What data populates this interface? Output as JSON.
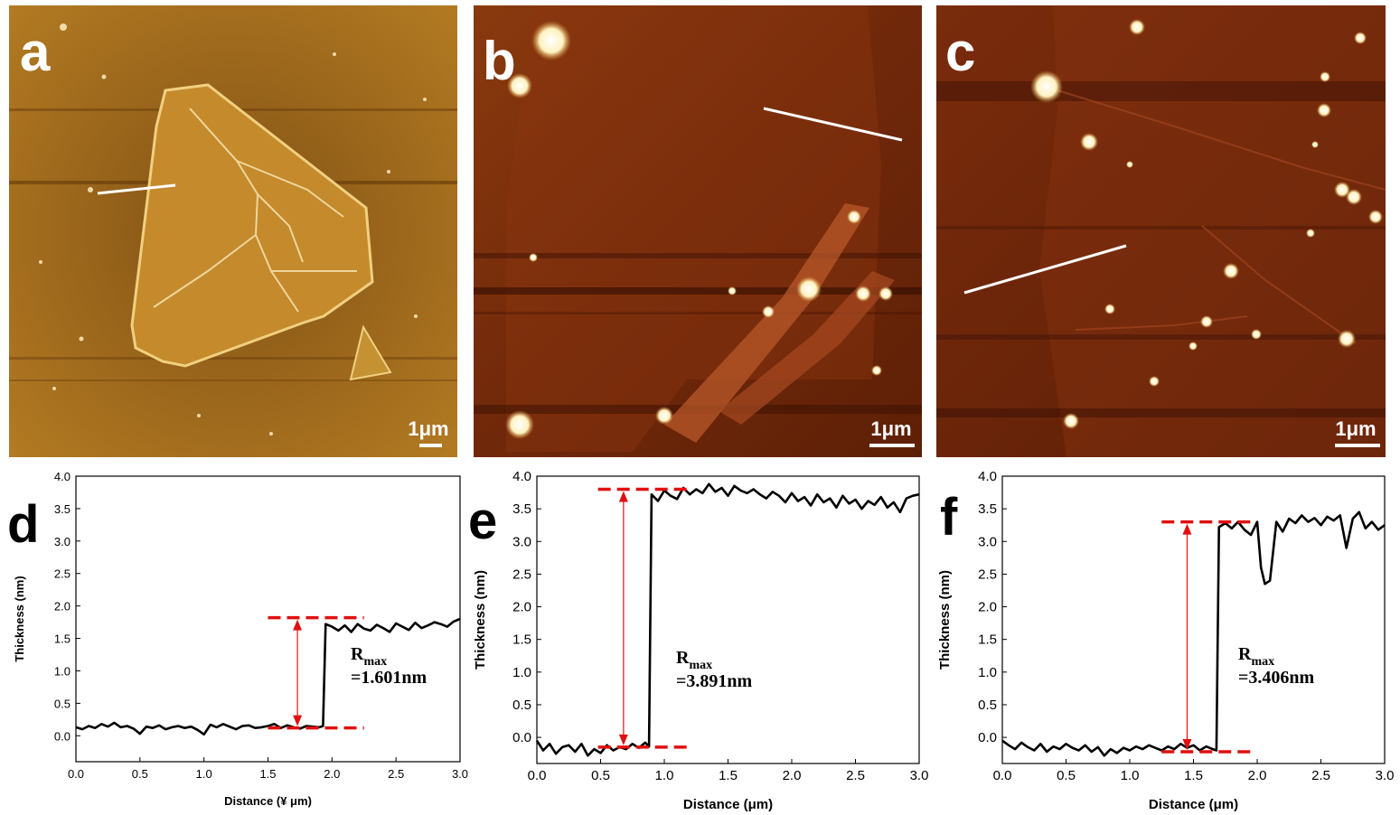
{
  "colors": {
    "afm_a_base": "#a8701a",
    "afm_bc_base": "#6e2608",
    "flake_a": "#c9902e",
    "bright_feature": "#fff6d6",
    "profile_line": "#000000",
    "dashed_marker": "#e01010",
    "arrow": "#e01010"
  },
  "images": [
    {
      "letter": "a",
      "scale_label": "1μm"
    },
    {
      "letter": "b",
      "scale_label": "1μm"
    },
    {
      "letter": "c",
      "scale_label": "1μm"
    }
  ],
  "chart_data": [
    {
      "type": "line",
      "panel": "d",
      "xlabel": "Distance (¥ μm)",
      "ylabel": "Thickness (nm)",
      "xlim": [
        0.0,
        3.0
      ],
      "ylim": [
        -0.4,
        4.0
      ],
      "xticks": [
        0.0,
        0.5,
        1.0,
        1.5,
        2.0,
        2.5,
        3.0
      ],
      "yticks": [
        0.0,
        0.5,
        1.0,
        1.5,
        2.0,
        2.5,
        3.0,
        3.5,
        4.0
      ],
      "annotation": {
        "symbol": "R",
        "subscript": "max",
        "value_text": "=1.601nm"
      },
      "markers": {
        "low": 0.12,
        "high": 1.82,
        "low_x": [
          1.5,
          2.25
        ],
        "high_x": [
          1.5,
          2.25
        ],
        "arrow_x": 1.73
      },
      "series": [
        {
          "x": [
            0.0,
            0.05,
            0.1,
            0.15,
            0.2,
            0.25,
            0.3,
            0.35,
            0.4,
            0.45,
            0.5,
            0.55,
            0.6,
            0.65,
            0.7,
            0.75,
            0.8,
            0.85,
            0.9,
            0.95,
            1.0,
            1.05,
            1.1,
            1.15,
            1.2,
            1.25,
            1.3,
            1.35,
            1.4,
            1.45,
            1.5,
            1.55,
            1.6,
            1.65,
            1.7,
            1.75,
            1.8,
            1.85,
            1.9,
            1.93,
            1.95,
            2.0,
            2.05,
            2.1,
            2.15,
            2.2,
            2.25,
            2.3,
            2.35,
            2.4,
            2.45,
            2.5,
            2.55,
            2.6,
            2.65,
            2.7,
            2.75,
            2.8,
            2.85,
            2.9,
            2.95,
            3.0
          ],
          "y": [
            0.13,
            0.1,
            0.15,
            0.12,
            0.18,
            0.14,
            0.2,
            0.13,
            0.15,
            0.11,
            0.03,
            0.14,
            0.12,
            0.16,
            0.1,
            0.13,
            0.15,
            0.12,
            0.14,
            0.09,
            0.02,
            0.17,
            0.13,
            0.18,
            0.14,
            0.1,
            0.15,
            0.16,
            0.12,
            0.13,
            0.15,
            0.18,
            0.12,
            0.16,
            0.13,
            0.11,
            0.15,
            0.14,
            0.13,
            0.15,
            1.72,
            1.68,
            1.62,
            1.7,
            1.6,
            1.72,
            1.65,
            1.62,
            1.71,
            1.66,
            1.6,
            1.73,
            1.68,
            1.63,
            1.74,
            1.66,
            1.7,
            1.75,
            1.72,
            1.68,
            1.76,
            1.8
          ]
        }
      ]
    },
    {
      "type": "line",
      "panel": "e",
      "xlabel": "Distance (μm)",
      "ylabel": "Thickness (nm)",
      "xlim": [
        0.0,
        3.0
      ],
      "ylim": [
        -0.4,
        4.0
      ],
      "xticks": [
        0.0,
        0.5,
        1.0,
        1.5,
        2.0,
        2.5,
        3.0
      ],
      "yticks": [
        0.0,
        0.5,
        1.0,
        1.5,
        2.0,
        2.5,
        3.0,
        3.5,
        4.0
      ],
      "annotation": {
        "symbol": "R",
        "subscript": "max",
        "value_text": "=3.891nm"
      },
      "markers": {
        "low": -0.15,
        "high": 3.8,
        "low_x": [
          0.48,
          1.22
        ],
        "high_x": [
          0.48,
          1.22
        ],
        "arrow_x": 0.68
      },
      "series": [
        {
          "x": [
            0.0,
            0.05,
            0.1,
            0.15,
            0.2,
            0.25,
            0.3,
            0.35,
            0.4,
            0.45,
            0.5,
            0.55,
            0.6,
            0.65,
            0.7,
            0.75,
            0.8,
            0.85,
            0.88,
            0.9,
            0.95,
            1.0,
            1.05,
            1.1,
            1.15,
            1.2,
            1.25,
            1.3,
            1.35,
            1.4,
            1.45,
            1.5,
            1.55,
            1.6,
            1.65,
            1.7,
            1.75,
            1.8,
            1.85,
            1.9,
            1.95,
            2.0,
            2.05,
            2.1,
            2.15,
            2.2,
            2.25,
            2.3,
            2.35,
            2.4,
            2.45,
            2.5,
            2.55,
            2.6,
            2.65,
            2.7,
            2.75,
            2.8,
            2.85,
            2.9,
            2.95,
            3.0
          ],
          "y": [
            -0.05,
            -0.2,
            -0.1,
            -0.25,
            -0.15,
            -0.12,
            -0.22,
            -0.1,
            -0.28,
            -0.18,
            -0.24,
            -0.12,
            -0.2,
            -0.15,
            -0.18,
            -0.1,
            -0.16,
            -0.08,
            -0.14,
            3.72,
            3.62,
            3.78,
            3.7,
            3.65,
            3.82,
            3.72,
            3.8,
            3.74,
            3.88,
            3.76,
            3.82,
            3.7,
            3.85,
            3.78,
            3.74,
            3.8,
            3.72,
            3.66,
            3.76,
            3.7,
            3.6,
            3.74,
            3.62,
            3.68,
            3.55,
            3.72,
            3.6,
            3.66,
            3.52,
            3.7,
            3.58,
            3.64,
            3.5,
            3.62,
            3.56,
            3.68,
            3.52,
            3.6,
            3.45,
            3.66,
            3.7,
            3.72
          ]
        }
      ]
    },
    {
      "type": "line",
      "panel": "f",
      "xlabel": "Distance (μm)",
      "ylabel": "Thickness (nm)",
      "xlim": [
        0.0,
        3.0
      ],
      "ylim": [
        -0.4,
        4.0
      ],
      "xticks": [
        0.0,
        0.5,
        1.0,
        1.5,
        2.0,
        2.5,
        3.0
      ],
      "yticks": [
        0.0,
        0.5,
        1.0,
        1.5,
        2.0,
        2.5,
        3.0,
        3.5,
        4.0
      ],
      "annotation": {
        "symbol": "R",
        "subscript": "max",
        "value_text": "=3.406nm"
      },
      "markers": {
        "low": -0.22,
        "high": 3.3,
        "low_x": [
          1.25,
          1.97
        ],
        "high_x": [
          1.25,
          1.97
        ],
        "arrow_x": 1.45
      },
      "series": [
        {
          "x": [
            0.0,
            0.05,
            0.1,
            0.15,
            0.2,
            0.25,
            0.3,
            0.35,
            0.4,
            0.45,
            0.5,
            0.55,
            0.6,
            0.65,
            0.7,
            0.75,
            0.8,
            0.85,
            0.9,
            0.95,
            1.0,
            1.05,
            1.1,
            1.15,
            1.2,
            1.25,
            1.3,
            1.35,
            1.4,
            1.45,
            1.5,
            1.55,
            1.6,
            1.65,
            1.68,
            1.7,
            1.75,
            1.8,
            1.85,
            1.9,
            1.95,
            2.0,
            2.03,
            2.06,
            2.1,
            2.15,
            2.2,
            2.25,
            2.3,
            2.35,
            2.4,
            2.45,
            2.5,
            2.55,
            2.6,
            2.65,
            2.7,
            2.75,
            2.8,
            2.85,
            2.9,
            2.95,
            3.0
          ],
          "y": [
            -0.05,
            -0.12,
            -0.18,
            -0.08,
            -0.15,
            -0.2,
            -0.1,
            -0.22,
            -0.14,
            -0.18,
            -0.1,
            -0.16,
            -0.2,
            -0.12,
            -0.22,
            -0.15,
            -0.28,
            -0.18,
            -0.24,
            -0.16,
            -0.2,
            -0.14,
            -0.18,
            -0.12,
            -0.16,
            -0.2,
            -0.14,
            -0.18,
            -0.1,
            -0.16,
            -0.12,
            -0.2,
            -0.14,
            -0.18,
            -0.2,
            3.22,
            3.28,
            3.2,
            3.3,
            3.18,
            3.1,
            3.3,
            2.6,
            2.35,
            2.4,
            3.3,
            3.15,
            3.35,
            3.28,
            3.4,
            3.3,
            3.36,
            3.25,
            3.38,
            3.32,
            3.4,
            2.9,
            3.35,
            3.45,
            3.2,
            3.3,
            3.18,
            3.25
          ]
        }
      ]
    }
  ]
}
